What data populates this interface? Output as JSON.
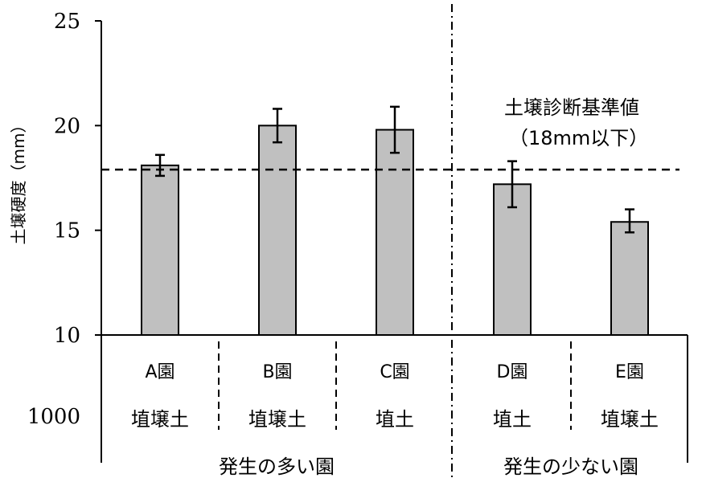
{
  "chart_data": {
    "type": "bar",
    "ylabel": "土壌硬度（mm）",
    "ylim": [
      10,
      25
    ],
    "yticks": [
      10,
      15,
      20,
      25
    ],
    "extra_left_label": "1000",
    "categories": [
      "A園",
      "B園",
      "C園",
      "D園",
      "E園"
    ],
    "soil_types": [
      "埴壌土",
      "埴壌土",
      "埴土",
      "埴土",
      "埴壌土"
    ],
    "values": [
      18.1,
      20.0,
      19.8,
      17.2,
      15.4
    ],
    "error_low": [
      17.6,
      19.2,
      18.7,
      16.1,
      14.9
    ],
    "error_high": [
      18.6,
      20.8,
      20.9,
      18.3,
      16.0
    ],
    "bar_color": "#c0c0c0",
    "groups": [
      {
        "label": "発生の多い園",
        "members": [
          "A園",
          "B園",
          "C園"
        ]
      },
      {
        "label": "発生の少ない園",
        "members": [
          "D園",
          "E園"
        ]
      }
    ],
    "reference_line": {
      "value": 17.9,
      "label_line1": "土壌診断基準値",
      "label_line2": "（18mm以下）"
    }
  }
}
